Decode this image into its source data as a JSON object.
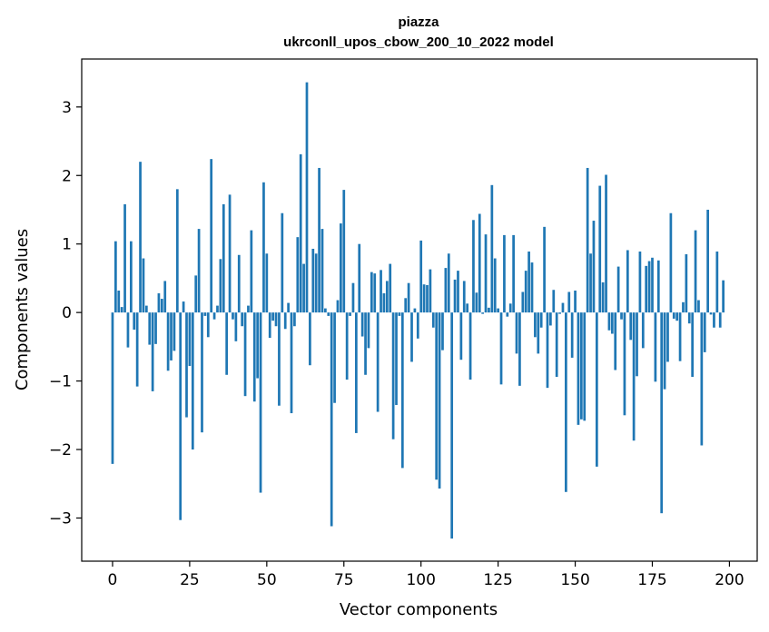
{
  "chart_data": {
    "type": "bar",
    "title": "piazza",
    "subtitle": "ukrconll_upos_cbow_200_10_2022 model",
    "xlabel": "Vector components",
    "ylabel": "Components values",
    "xlim": [
      -10,
      209
    ],
    "ylim": [
      -3.63,
      3.7
    ],
    "xticks": [
      0,
      25,
      50,
      75,
      100,
      125,
      150,
      175,
      200
    ],
    "yticks": [
      -3,
      -2,
      -1,
      0,
      1,
      2,
      3
    ],
    "bar_color": "#1f77b4",
    "series": [
      {
        "name": "piazza",
        "values": [
          -2.21,
          1.04,
          0.32,
          0.08,
          1.58,
          -0.51,
          1.04,
          -0.25,
          -1.08,
          2.2,
          0.79,
          0.1,
          -0.47,
          -1.15,
          -0.46,
          0.28,
          0.2,
          0.46,
          -0.85,
          -0.7,
          -0.56,
          1.8,
          -3.03,
          0.16,
          -1.53,
          -0.78,
          -2.0,
          0.54,
          1.22,
          -1.75,
          -0.05,
          -0.36,
          2.24,
          -0.1,
          0.1,
          0.78,
          1.58,
          -0.91,
          1.72,
          -0.1,
          -0.42,
          0.84,
          -0.2,
          -1.22,
          0.1,
          1.2,
          -1.3,
          -0.96,
          -2.63,
          1.9,
          0.86,
          -0.37,
          -0.12,
          -0.2,
          -1.36,
          1.45,
          -0.24,
          0.14,
          -1.47,
          -0.2,
          1.1,
          2.31,
          0.71,
          3.36,
          -0.77,
          0.93,
          0.86,
          2.11,
          1.22,
          0.06,
          -0.05,
          -3.12,
          -1.32,
          0.18,
          1.3,
          1.79,
          -0.98,
          -0.05,
          0.43,
          -1.76,
          1.0,
          -0.35,
          -0.91,
          -0.52,
          0.59,
          0.57,
          -1.45,
          0.62,
          0.28,
          0.46,
          0.71,
          -1.85,
          -1.35,
          -0.05,
          -2.27,
          0.21,
          0.43,
          -0.72,
          0.06,
          -0.38,
          1.05,
          0.41,
          0.4,
          0.63,
          -0.22,
          -2.44,
          -2.57,
          -0.55,
          0.65,
          0.86,
          -3.3,
          0.48,
          0.61,
          -0.69,
          0.46,
          0.13,
          -0.98,
          1.35,
          0.29,
          1.44,
          -0.02,
          1.14,
          0.07,
          1.86,
          0.79,
          0.06,
          -1.05,
          1.13,
          -0.06,
          0.13,
          1.13,
          -0.6,
          -1.07,
          0.3,
          0.61,
          0.89,
          0.73,
          -0.36,
          -0.6,
          -0.22,
          1.25,
          -1.1,
          -0.19,
          0.33,
          -0.94,
          -0.02,
          0.14,
          -2.62,
          0.3,
          -0.66,
          0.32,
          -1.64,
          -1.56,
          -1.58,
          2.11,
          0.86,
          1.34,
          -2.25,
          1.85,
          0.44,
          2.01,
          -0.26,
          -0.31,
          -0.84,
          0.67,
          -0.1,
          -1.5,
          0.91,
          -0.4,
          -1.87,
          -0.93,
          0.89,
          -0.52,
          0.68,
          0.75,
          0.8,
          -1.01,
          0.76,
          -2.93,
          -1.12,
          -0.72,
          1.45,
          -0.09,
          -0.12,
          -0.71,
          0.15,
          0.85,
          -0.16,
          -0.94,
          1.2,
          0.18,
          -1.94,
          -0.58,
          1.5,
          -0.03,
          -0.22,
          0.89,
          -0.22,
          0.47
        ]
      }
    ]
  }
}
